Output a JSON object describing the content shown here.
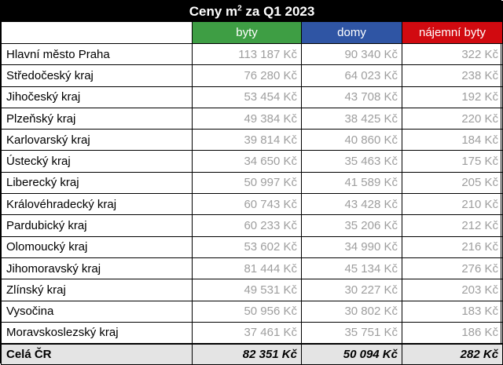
{
  "table": {
    "title_main": "Ceny m",
    "title_sup": "2",
    "title_rest": " za Q1 2023",
    "columns": [
      "",
      "byty",
      "domy",
      "nájemní byty"
    ],
    "colors": {
      "byty": "#3e9e44",
      "domy": "#2f55a4",
      "najem": "#d10a10"
    },
    "rows": [
      {
        "region": "Hlavní město Praha",
        "byty": "113 187 Kč",
        "domy": "90 340 Kč",
        "najem": "322 Kč"
      },
      {
        "region": "Středočeský kraj",
        "byty": "76 280 Kč",
        "domy": "64 023 Kč",
        "najem": "238 Kč"
      },
      {
        "region": "Jihočeský kraj",
        "byty": "53 454 Kč",
        "domy": "43 708 Kč",
        "najem": "192 Kč"
      },
      {
        "region": "Plzeňský kraj",
        "byty": "49 384 Kč",
        "domy": "38 425 Kč",
        "najem": "220 Kč"
      },
      {
        "region": "Karlovarský kraj",
        "byty": "39 814 Kč",
        "domy": "40 860 Kč",
        "najem": "184 Kč"
      },
      {
        "region": "Ústecký kraj",
        "byty": "34 650 Kč",
        "domy": "35 463 Kč",
        "najem": "175 Kč"
      },
      {
        "region": "Liberecký kraj",
        "byty": "50 997 Kč",
        "domy": "41 589 Kč",
        "najem": "205 Kč"
      },
      {
        "region": "Královéhradecký kraj",
        "byty": "60 743 Kč",
        "domy": "43 428 Kč",
        "najem": "210 Kč"
      },
      {
        "region": "Pardubický kraj",
        "byty": "60 233 Kč",
        "domy": "35 206 Kč",
        "najem": "212 Kč"
      },
      {
        "region": "Olomoucký kraj",
        "byty": "53 602 Kč",
        "domy": "34 990 Kč",
        "najem": "216 Kč"
      },
      {
        "region": "Jihomoravský kraj",
        "byty": "81 444 Kč",
        "domy": "45 134 Kč",
        "najem": "276 Kč"
      },
      {
        "region": "Zlínský kraj",
        "byty": "49 531 Kč",
        "domy": "30 227 Kč",
        "najem": "203 Kč"
      },
      {
        "region": "Vysočina",
        "byty": "50 956 Kč",
        "domy": "30 802 Kč",
        "najem": "183 Kč"
      },
      {
        "region": "Moravskoslezský kraj",
        "byty": "37 461 Kč",
        "domy": "35 751 Kč",
        "najem": "186 Kč"
      }
    ],
    "total": {
      "region": "Celá ČR",
      "byty": "82 351 Kč",
      "domy": "50 094 Kč",
      "najem": "282 Kč"
    }
  }
}
